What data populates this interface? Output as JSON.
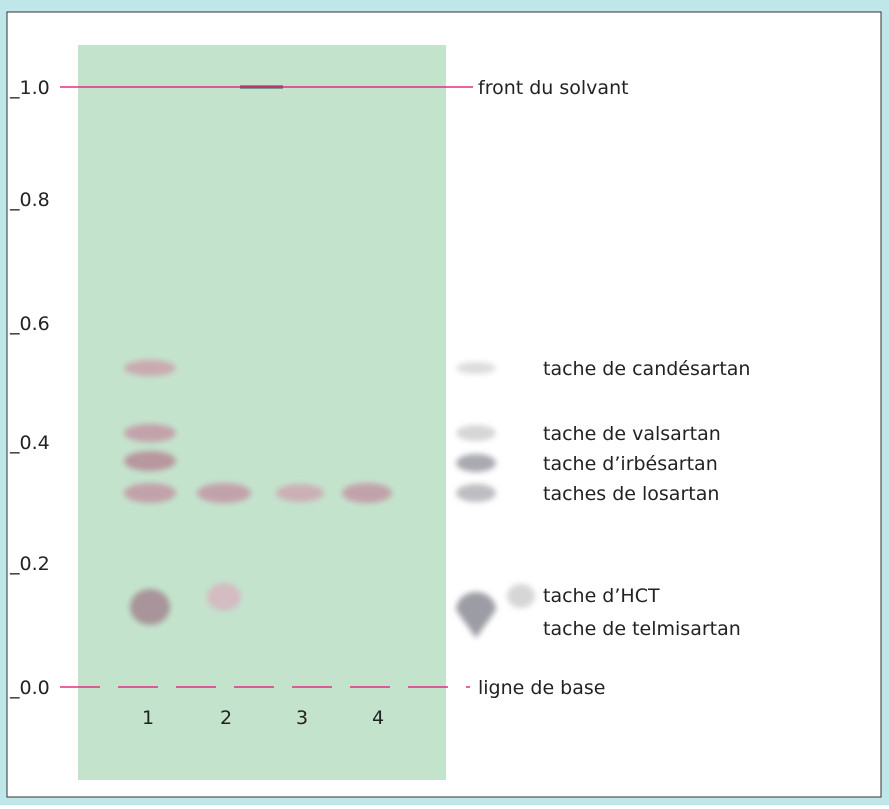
{
  "axis": {
    "ticks": [
      "_1.0",
      "_0.8",
      "_0.6",
      "_0.4",
      "_0.2",
      "_0.0"
    ]
  },
  "annotations": {
    "solvent_front": "front du solvant",
    "baseline": "ligne de base"
  },
  "lanes": [
    "1",
    "2",
    "3",
    "4"
  ],
  "legend": [
    "tache de candésartan",
    "tache de valsartan",
    "tache d’irbésartan",
    "taches de losartan",
    "tache d’HCT",
    "tache de telmisartan"
  ]
}
